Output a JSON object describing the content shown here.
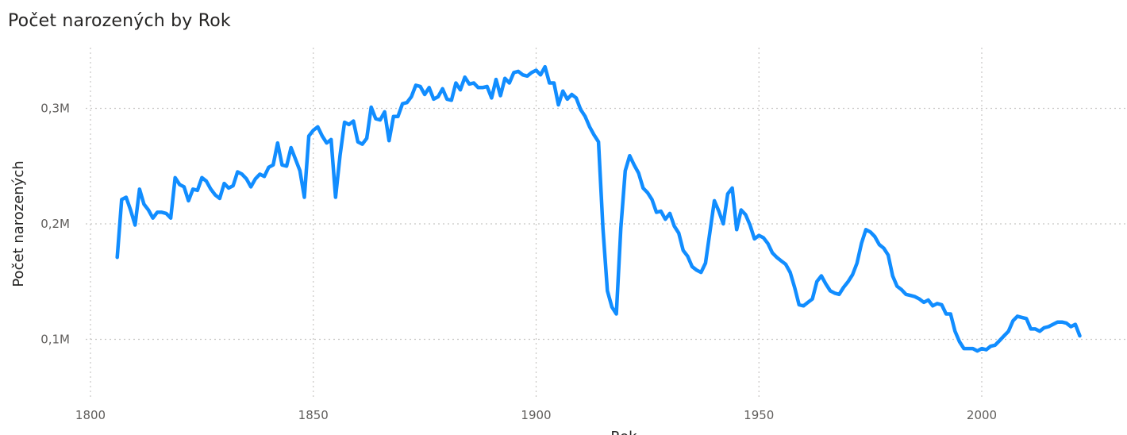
{
  "chart_data": {
    "type": "line",
    "title": "Počet narozených by Rok",
    "xlabel": "Rok",
    "ylabel": "Počet narozených",
    "xlim": [
      1800,
      2031
    ],
    "ylim": [
      0.05,
      0.35
    ],
    "grid": true,
    "x_ticks": [
      1800,
      1850,
      1900,
      1950,
      2000
    ],
    "x_tick_labels": [
      "1800",
      "1850",
      "1900",
      "1950",
      "2000"
    ],
    "y_ticks": [
      0.1,
      0.2,
      0.3
    ],
    "y_tick_labels": [
      "0,1M",
      "0,2M",
      "0,3M"
    ],
    "series": [
      {
        "color": "#118dff",
        "x": [
          1806,
          1807,
          1808,
          1809,
          1810,
          1811,
          1812,
          1813,
          1814,
          1815,
          1816,
          1817,
          1818,
          1819,
          1820,
          1821,
          1822,
          1823,
          1824,
          1825,
          1826,
          1827,
          1828,
          1829,
          1830,
          1831,
          1832,
          1833,
          1834,
          1835,
          1836,
          1837,
          1838,
          1839,
          1840,
          1841,
          1842,
          1843,
          1844,
          1845,
          1846,
          1847,
          1848,
          1849,
          1850,
          1851,
          1852,
          1853,
          1854,
          1855,
          1856,
          1857,
          1858,
          1859,
          1860,
          1861,
          1862,
          1863,
          1864,
          1865,
          1866,
          1867,
          1868,
          1869,
          1870,
          1871,
          1872,
          1873,
          1874,
          1875,
          1876,
          1877,
          1878,
          1879,
          1880,
          1881,
          1882,
          1883,
          1884,
          1885,
          1886,
          1887,
          1888,
          1889,
          1890,
          1891,
          1892,
          1893,
          1894,
          1895,
          1896,
          1897,
          1898,
          1899,
          1900,
          1901,
          1902,
          1903,
          1904,
          1905,
          1906,
          1907,
          1908,
          1909,
          1910,
          1911,
          1912,
          1913,
          1914,
          1915,
          1916,
          1917,
          1918,
          1919,
          1920,
          1921,
          1922,
          1923,
          1924,
          1925,
          1926,
          1927,
          1928,
          1929,
          1930,
          1931,
          1932,
          1933,
          1934,
          1935,
          1936,
          1937,
          1938,
          1939,
          1940,
          1941,
          1942,
          1943,
          1944,
          1945,
          1946,
          1947,
          1948,
          1949,
          1950,
          1951,
          1952,
          1953,
          1954,
          1955,
          1956,
          1957,
          1958,
          1959,
          1960,
          1961,
          1962,
          1963,
          1964,
          1965,
          1966,
          1967,
          1968,
          1969,
          1970,
          1971,
          1972,
          1973,
          1974,
          1975,
          1976,
          1977,
          1978,
          1979,
          1980,
          1981,
          1982,
          1983,
          1984,
          1985,
          1986,
          1987,
          1988,
          1989,
          1990,
          1991,
          1992,
          1993,
          1994,
          1995,
          1996,
          1997,
          1998,
          1999,
          2000,
          2001,
          2002,
          2003,
          2004,
          2005,
          2006,
          2007,
          2008,
          2009,
          2010,
          2011,
          2012,
          2013,
          2014,
          2015,
          2016,
          2017,
          2018,
          2019,
          2020,
          2021,
          2022
        ],
        "values": [
          0.171,
          0.221,
          0.223,
          0.212,
          0.199,
          0.23,
          0.217,
          0.212,
          0.205,
          0.21,
          0.21,
          0.209,
          0.205,
          0.24,
          0.234,
          0.232,
          0.22,
          0.23,
          0.229,
          0.24,
          0.237,
          0.23,
          0.225,
          0.222,
          0.235,
          0.231,
          0.233,
          0.245,
          0.243,
          0.239,
          0.232,
          0.239,
          0.243,
          0.241,
          0.249,
          0.251,
          0.27,
          0.251,
          0.25,
          0.266,
          0.256,
          0.246,
          0.223,
          0.276,
          0.281,
          0.284,
          0.276,
          0.27,
          0.273,
          0.223,
          0.259,
          0.288,
          0.286,
          0.289,
          0.271,
          0.269,
          0.274,
          0.301,
          0.291,
          0.29,
          0.297,
          0.272,
          0.293,
          0.293,
          0.304,
          0.305,
          0.31,
          0.32,
          0.319,
          0.312,
          0.318,
          0.308,
          0.31,
          0.317,
          0.308,
          0.307,
          0.322,
          0.316,
          0.327,
          0.321,
          0.322,
          0.318,
          0.318,
          0.319,
          0.309,
          0.325,
          0.311,
          0.326,
          0.322,
          0.331,
          0.332,
          0.329,
          0.328,
          0.331,
          0.333,
          0.329,
          0.336,
          0.322,
          0.322,
          0.303,
          0.315,
          0.308,
          0.312,
          0.309,
          0.299,
          0.293,
          0.284,
          0.277,
          0.271,
          0.196,
          0.142,
          0.128,
          0.122,
          0.196,
          0.246,
          0.259,
          0.251,
          0.244,
          0.231,
          0.227,
          0.221,
          0.21,
          0.211,
          0.204,
          0.209,
          0.198,
          0.192,
          0.177,
          0.172,
          0.163,
          0.16,
          0.158,
          0.166,
          0.193,
          0.22,
          0.211,
          0.2,
          0.226,
          0.231,
          0.195,
          0.212,
          0.208,
          0.199,
          0.187,
          0.19,
          0.188,
          0.183,
          0.175,
          0.171,
          0.168,
          0.165,
          0.158,
          0.145,
          0.13,
          0.129,
          0.132,
          0.135,
          0.15,
          0.155,
          0.148,
          0.142,
          0.14,
          0.139,
          0.145,
          0.15,
          0.156,
          0.166,
          0.183,
          0.195,
          0.193,
          0.189,
          0.182,
          0.179,
          0.173,
          0.155,
          0.146,
          0.143,
          0.139,
          0.138,
          0.137,
          0.135,
          0.132,
          0.134,
          0.129,
          0.131,
          0.13,
          0.122,
          0.122,
          0.107,
          0.098,
          0.092,
          0.092,
          0.092,
          0.09,
          0.092,
          0.091,
          0.094,
          0.095,
          0.099,
          0.103,
          0.107,
          0.116,
          0.12,
          0.119,
          0.118,
          0.109,
          0.109,
          0.107,
          0.11,
          0.111,
          0.113,
          0.115,
          0.115,
          0.114,
          0.111,
          0.113,
          0.103
        ]
      }
    ]
  }
}
